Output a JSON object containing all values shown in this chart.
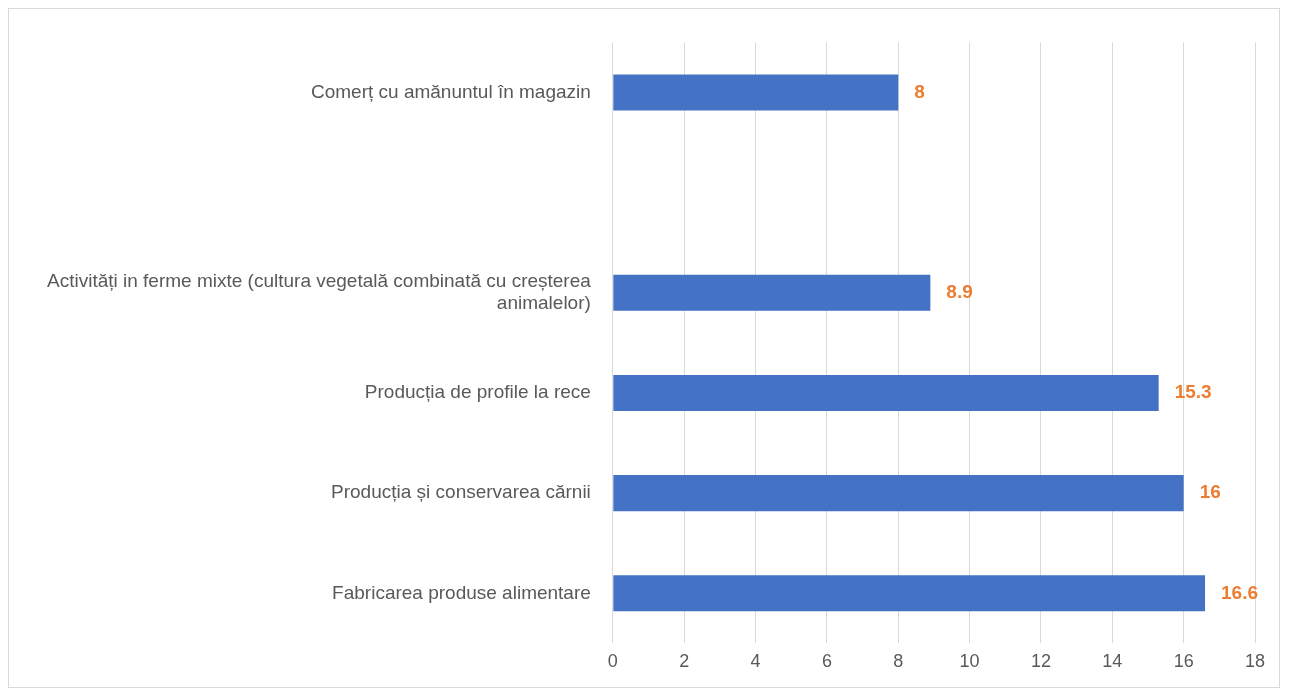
{
  "chart_data": {
    "type": "bar",
    "orientation": "horizontal",
    "categories": [
      "Comerț cu amănuntul în magazin",
      null,
      "Activități in ferme mixte (cultura vegetală combinată cu creșterea animalelor)",
      "Producția de profile la rece",
      "Producția și conservarea cărnii",
      "Fabricarea produse alimentare"
    ],
    "values": [
      8,
      null,
      8.9,
      15.3,
      16,
      16.6
    ],
    "color": "#4472c4",
    "xlim": [
      0,
      18
    ],
    "xticks": [
      0,
      2,
      4,
      6,
      8,
      10,
      12,
      14,
      16,
      18
    ],
    "grid": "x",
    "legend": false,
    "data_labels": true
  }
}
